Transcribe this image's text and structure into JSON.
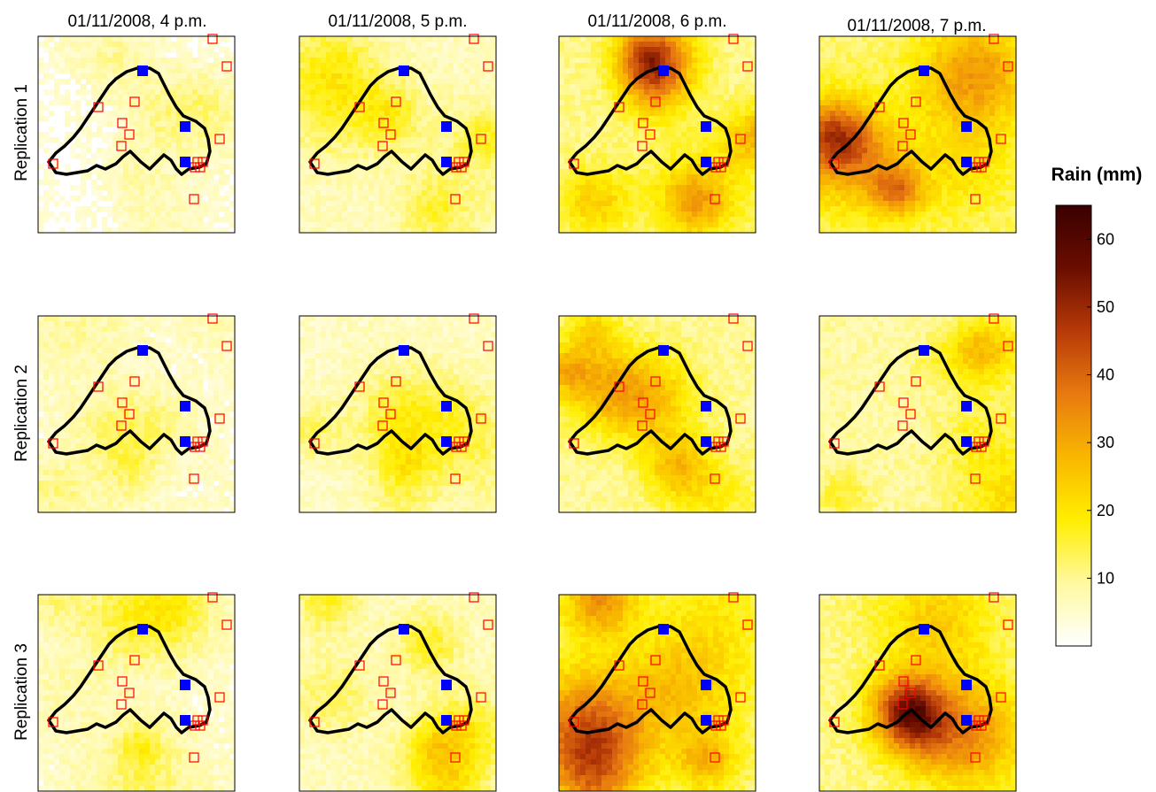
{
  "chart_data": {
    "type": "heatmap",
    "description_free": true,
    "columns": [
      {
        "label": "01/11/2008, 4 p.m."
      },
      {
        "label": "01/11/2008, 5 p.m."
      },
      {
        "label": "01/11/2008, 6 p.m."
      },
      {
        "label": "01/11/2008, 7 p.m."
      }
    ],
    "rows": [
      {
        "label": "Replication 1"
      },
      {
        "label": "Replication 2"
      },
      {
        "label": "Replication 3"
      }
    ],
    "panels_intensity": [
      [
        0.1,
        0.22,
        0.35,
        0.42
      ],
      [
        0.18,
        0.2,
        0.32,
        0.3
      ],
      [
        0.16,
        0.22,
        0.4,
        0.36
      ]
    ],
    "colorbar": {
      "title": "Rain (mm)",
      "min": 0,
      "max": 65,
      "ticks": [
        10,
        20,
        30,
        40,
        50,
        60
      ],
      "tick_labels": [
        "10",
        "20",
        "30",
        "40",
        "50",
        "60"
      ],
      "colormap": [
        "#ffffff",
        "#fff9a0",
        "#ffee00",
        "#f9b700",
        "#e87a10",
        "#b73a08",
        "#6a0d00",
        "#3a0000"
      ]
    },
    "markers": {
      "gauge_marker_color": "#ff0000",
      "outlet_marker_color": "#0000ff",
      "catchment_outline_color": "#000000"
    }
  }
}
